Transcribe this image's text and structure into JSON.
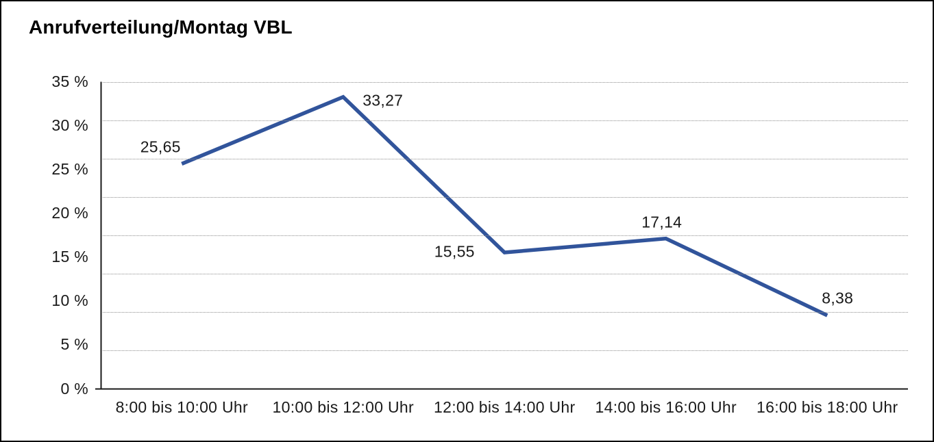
{
  "chart_data": {
    "type": "line",
    "title": "Anrufverteilung/Montag VBL",
    "categories": [
      "8:00 bis 10:00 Uhr",
      "10:00 bis 12:00 Uhr",
      "12:00 bis 14:00 Uhr",
      "14:00 bis 16:00 Uhr",
      "16:00 bis 18:00 Uhr"
    ],
    "values": [
      25.65,
      33.27,
      15.55,
      17.14,
      8.38
    ],
    "point_labels": [
      "25,65",
      "33,27",
      "15,55",
      "17,14",
      "8,38"
    ],
    "yticks": [
      {
        "value": 0,
        "label": "0 %"
      },
      {
        "value": 5,
        "label": "5 %"
      },
      {
        "value": 10,
        "label": "10 %"
      },
      {
        "value": 15,
        "label": "15 %"
      },
      {
        "value": 20,
        "label": "20 %"
      },
      {
        "value": 25,
        "label": "25 %"
      },
      {
        "value": 30,
        "label": "30 %"
      },
      {
        "value": 35,
        "label": "35 %"
      }
    ],
    "ylim": [
      0,
      35
    ],
    "xlabel": "",
    "ylabel": "",
    "grid": "horizontal-dotted",
    "grid_divisions": 8,
    "legend": "none",
    "line_color": "#31549B",
    "axis_color": "#1a1a1a",
    "gridline_color": "#8c8c8c",
    "background_color": "#ffffff"
  }
}
